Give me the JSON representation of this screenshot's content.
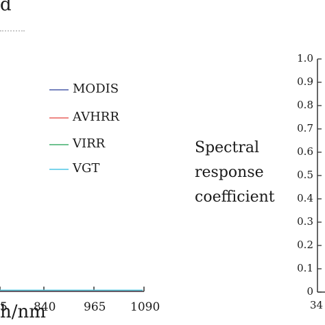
{
  "chart_data": [
    {
      "type": "line",
      "title": "",
      "title_fragment": "d",
      "xlabel_fragment": "h/nm",
      "x_ticks": [
        "5",
        "840",
        "965",
        "1090"
      ],
      "series": [
        {
          "name": "MODIS",
          "color": "#4a5ba8"
        },
        {
          "name": "AVHRR",
          "color": "#e8605c"
        },
        {
          "name": "VIRR",
          "color": "#3fae6a"
        },
        {
          "name": "VGT",
          "color": "#4fc6e6"
        }
      ],
      "legend_position": "center-right"
    },
    {
      "type": "line",
      "ylabel": [
        "Spectral",
        "response",
        "coefficient"
      ],
      "y_ticks": [
        "1.0",
        "0.9",
        "0.8",
        "0.7",
        "0.6",
        "0.5",
        "0.4",
        "0.3",
        "0.2",
        "0.1",
        "0"
      ],
      "ylim": [
        0,
        1.0
      ],
      "x_tick_fragment": "34"
    }
  ]
}
